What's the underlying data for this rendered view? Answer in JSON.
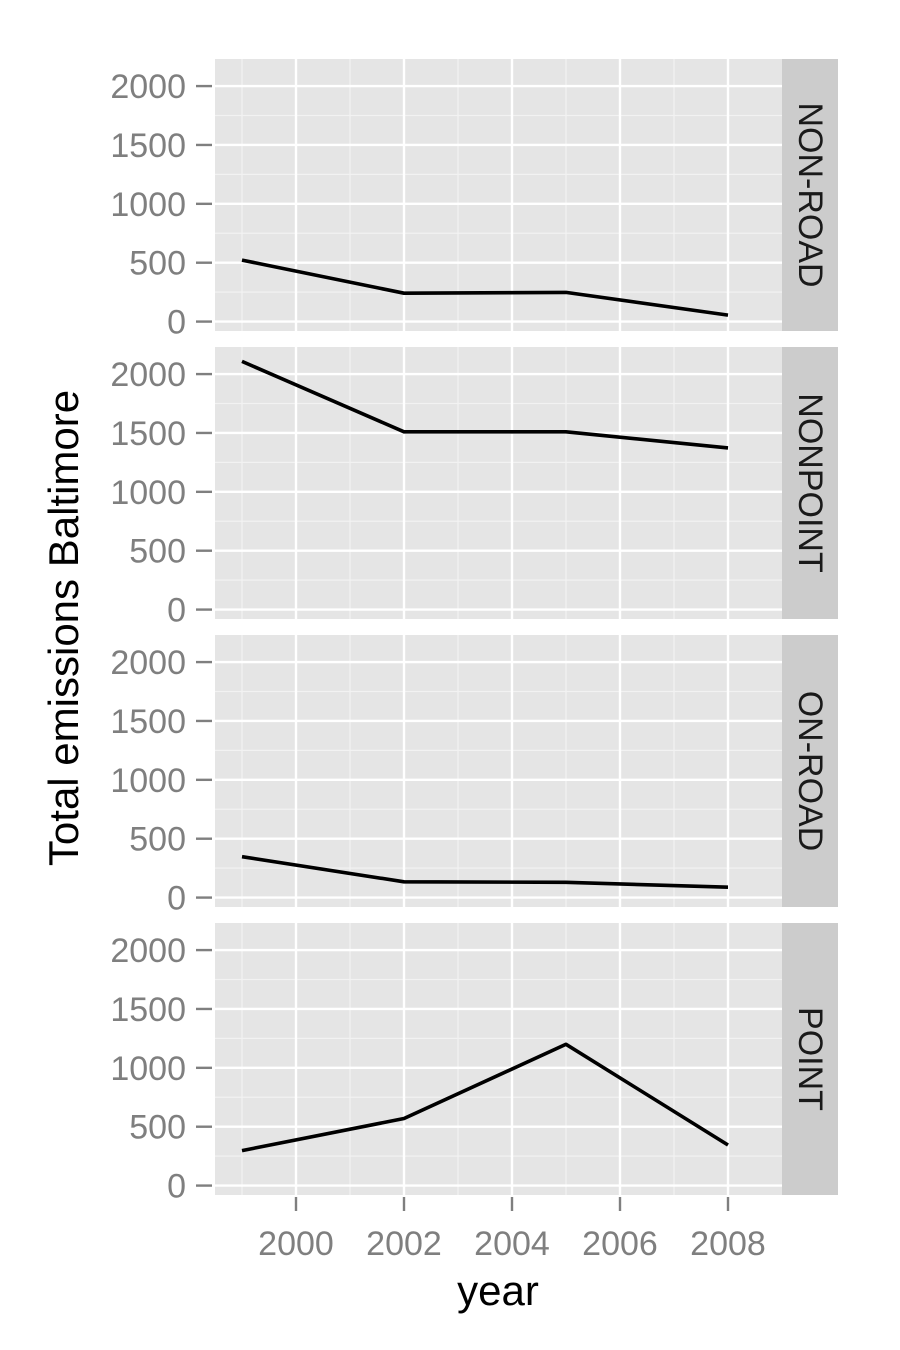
{
  "chart_data": {
    "type": "line",
    "facet": "rows",
    "xlabel": "year",
    "ylabel": "Total emissions Baltimore",
    "x": [
      1999,
      2002,
      2005,
      2008
    ],
    "xticks": [
      2000,
      2002,
      2004,
      2006,
      2008
    ],
    "yticks": [
      0,
      500,
      1000,
      1500,
      2000
    ],
    "xlim": [
      1998.5,
      2009
    ],
    "ylim": [
      -80,
      2230
    ],
    "grid": true,
    "colors": {
      "panel": "#e5e5e5",
      "strip": "#cccccc",
      "line": "#000000",
      "grid_major": "#ffffff",
      "grid_minor": "#f2f2f2"
    },
    "panels": [
      {
        "label": "NON-ROAD",
        "values": [
          522,
          241,
          248,
          55
        ]
      },
      {
        "label": "NONPOINT",
        "values": [
          2108,
          1510,
          1510,
          1373
        ]
      },
      {
        "label": "ON-ROAD",
        "values": [
          347,
          134,
          130,
          88
        ]
      },
      {
        "label": "POINT",
        "values": [
          297,
          570,
          1200,
          345
        ]
      }
    ]
  }
}
